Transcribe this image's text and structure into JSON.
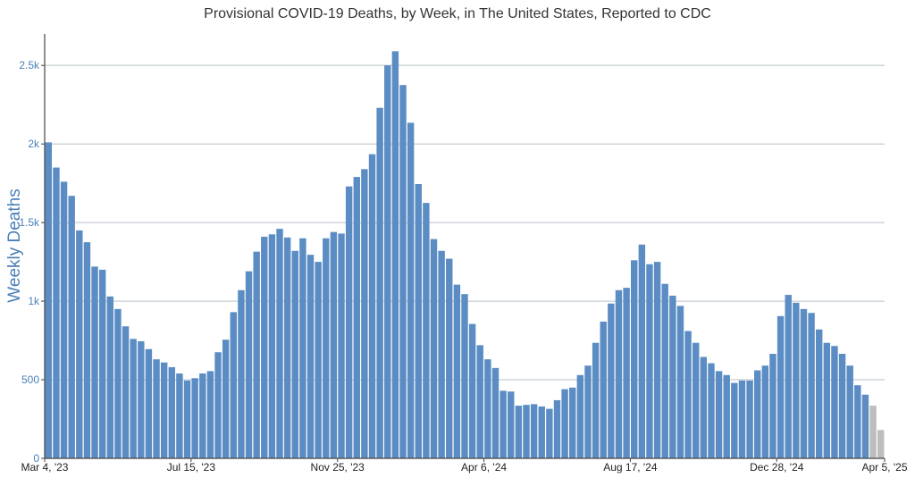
{
  "chart_data": {
    "type": "bar",
    "title": "Provisional COVID-19 Deaths, by Week, in The United States, Reported to CDC",
    "xlabel": "",
    "ylabel": "Weekly Deaths",
    "ylim": [
      0,
      2700
    ],
    "grid": true,
    "y_ticks": [
      {
        "value": 0,
        "label": "0"
      },
      {
        "value": 500,
        "label": "500"
      },
      {
        "value": 1000,
        "label": "1k"
      },
      {
        "value": 1500,
        "label": "1.5k"
      },
      {
        "value": 2000,
        "label": "2k"
      },
      {
        "value": 2500,
        "label": "2.5k"
      }
    ],
    "x_ticks": [
      {
        "index": 0,
        "label": "Mar 4, '23"
      },
      {
        "index": 19,
        "label": "Jul 15, '23"
      },
      {
        "index": 38,
        "label": "Nov 25, '23"
      },
      {
        "index": 57,
        "label": "Apr 6, '24"
      },
      {
        "index": 76,
        "label": "Aug 17, '24"
      },
      {
        "index": 95,
        "label": "Dec 28, '24"
      },
      {
        "index": 109,
        "label": "Apr 5, '25"
      }
    ],
    "colors": {
      "reported": "#5b8dc4",
      "incomplete": "#bdbdbd",
      "grid": "#b9c1c9",
      "axis": "#444444"
    },
    "incomplete_from_index": 107,
    "values": [
      2010,
      1850,
      1760,
      1670,
      1450,
      1375,
      1220,
      1200,
      1030,
      950,
      840,
      760,
      745,
      695,
      630,
      610,
      580,
      540,
      495,
      510,
      540,
      555,
      675,
      755,
      930,
      1070,
      1190,
      1315,
      1410,
      1425,
      1460,
      1405,
      1320,
      1400,
      1295,
      1250,
      1400,
      1440,
      1430,
      1730,
      1790,
      1840,
      1935,
      2230,
      2500,
      2590,
      2375,
      2135,
      1745,
      1625,
      1395,
      1320,
      1270,
      1105,
      1045,
      855,
      720,
      630,
      575,
      430,
      425,
      335,
      340,
      345,
      330,
      315,
      370,
      440,
      450,
      530,
      590,
      735,
      870,
      985,
      1070,
      1085,
      1260,
      1360,
      1235,
      1250,
      1110,
      1035,
      970,
      810,
      735,
      645,
      605,
      555,
      530,
      480,
      495,
      495,
      560,
      590,
      665,
      905,
      1040,
      990,
      950,
      925,
      820,
      735,
      715,
      665,
      590,
      465,
      405,
      335,
      180
    ]
  }
}
